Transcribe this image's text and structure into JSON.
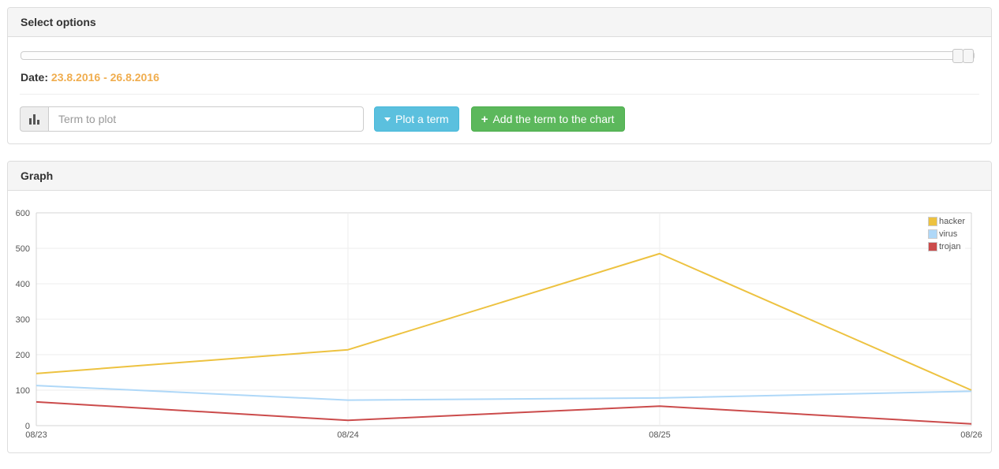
{
  "select_options_panel": {
    "title": "Select options",
    "date_label": "Date:",
    "date_range": "23.8.2016 - 26.8.2016",
    "term_input": {
      "value": "",
      "placeholder": "Term to plot"
    },
    "plot_button_label": "Plot a term",
    "add_button_label": "Add the term to the chart",
    "icons": {
      "plus_glyph": "+"
    },
    "colors": {
      "plot_button": "#5bc0de",
      "add_button": "#5cb85c",
      "date_range": "#f0ad4e"
    }
  },
  "graph_panel": {
    "title": "Graph"
  },
  "chart_data": {
    "type": "line",
    "title": "",
    "x": [
      "08/23",
      "08/24",
      "08/25",
      "08/26"
    ],
    "series": [
      {
        "name": "hacker",
        "color": "#edc240",
        "values": [
          147,
          214,
          485,
          100
        ]
      },
      {
        "name": "virus",
        "color": "#afd8f8",
        "values": [
          113,
          72,
          78,
          97
        ]
      },
      {
        "name": "trojan",
        "color": "#cb4b4b",
        "values": [
          67,
          15,
          55,
          5
        ]
      }
    ],
    "ylim": [
      0,
      600
    ],
    "yticks": [
      0,
      100,
      200,
      300,
      400,
      500,
      600
    ],
    "grid": true,
    "legend_position": "top-right",
    "axis_text_color": "#545454",
    "grid_border_color": "#d4d4d4",
    "gridline_color": "#ededed"
  }
}
